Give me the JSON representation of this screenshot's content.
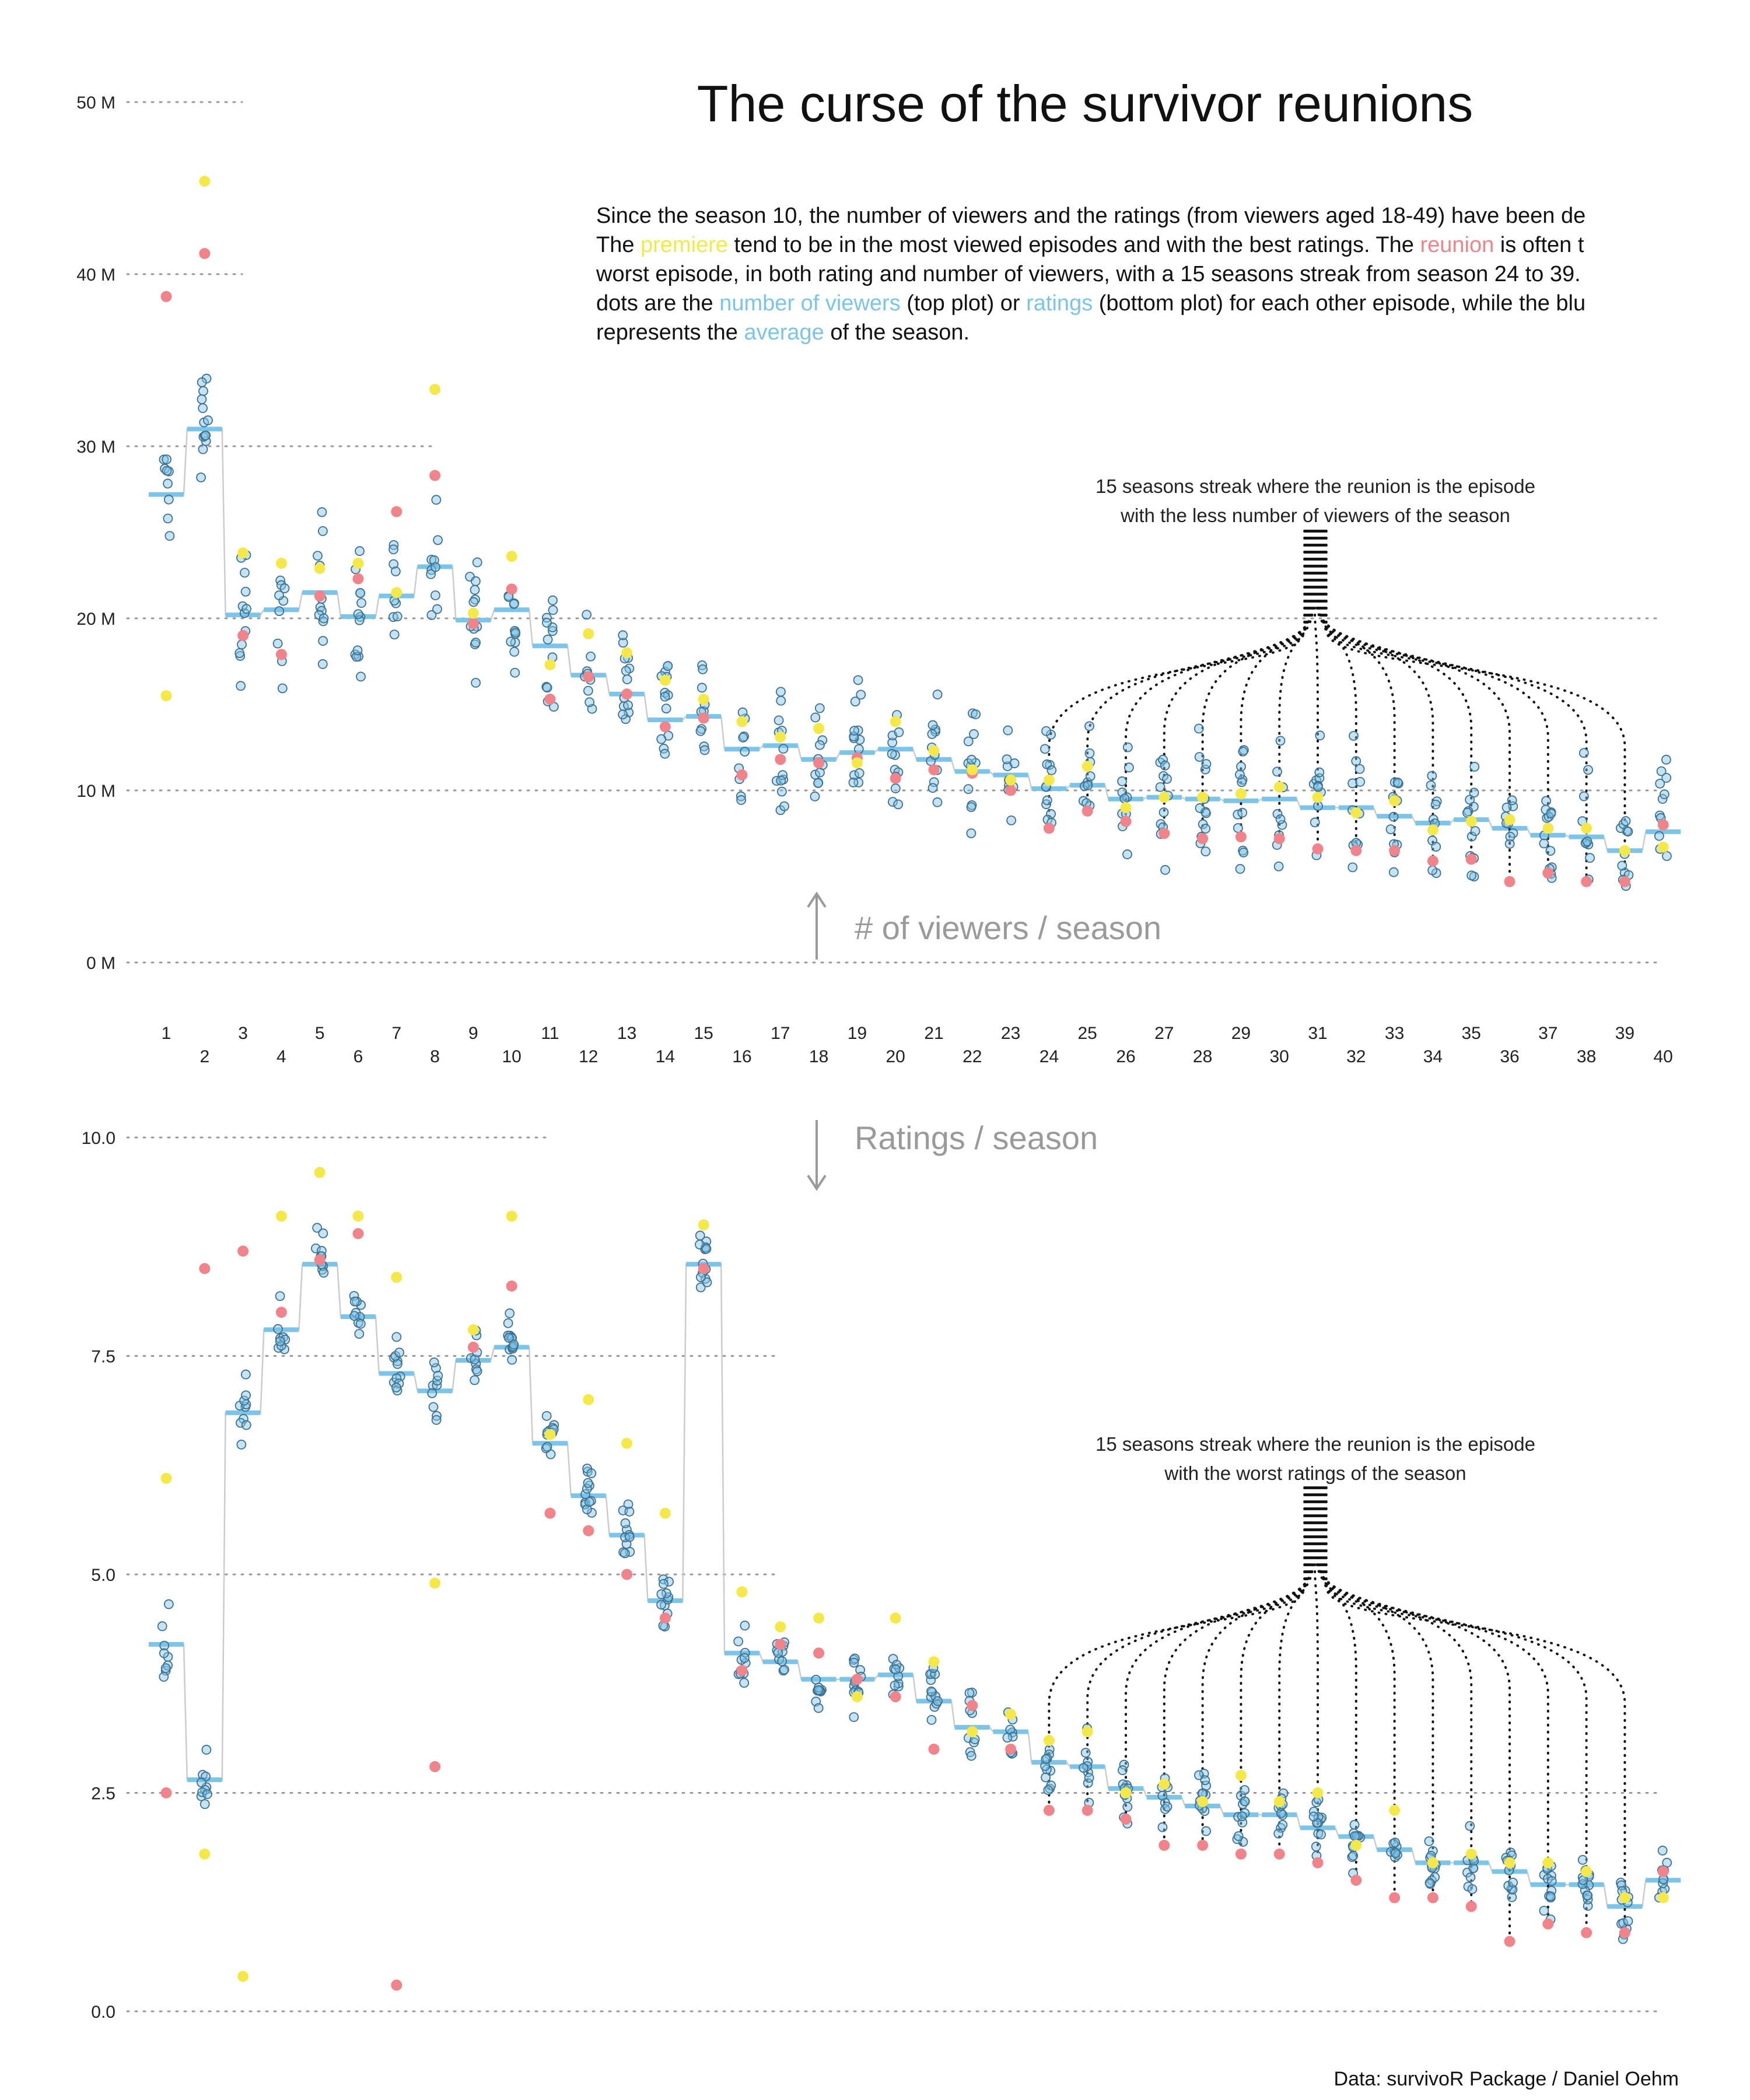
{
  "title": "The curse of the survivor reunions",
  "description": {
    "line1": "Since the season 10, the number of viewers and the ratings (from viewers aged 18-49) have been de",
    "line2_a": "The ",
    "line2_premiere": "premiere",
    "line2_b": " tend to be in the most viewed episodes and with the best ratings. The ",
    "line2_reunion": "reunion",
    "line2_c": " is often t",
    "line3": "worst episode, in both rating and number of viewers, with a 15 seasons streak from season 24 to 39.",
    "line4_a": "dots are the ",
    "line4_viewers": "number of viewers",
    "line4_b": " (top plot) or ",
    "line4_ratings": "ratings",
    "line4_c": " (bottom plot) for each other episode, while the blu",
    "line5_a": "represents the ",
    "line5_average": "average",
    "line5_b": " of the season."
  },
  "colors": {
    "premiere": "#F5E94A",
    "reunion": "#F0848A",
    "episode": "#7CC4E8",
    "average": "#7CC4E8",
    "connector": "#cccccc",
    "grid": "#999999",
    "axis_label": "#9a9a9a"
  },
  "labels": {
    "viewers_axis": "# of viewers / season",
    "ratings_axis": "Ratings / season",
    "viewers_annotation_1": "15 seasons streak where the reunion is the episode",
    "viewers_annotation_2": "with the less number of viewers of the season",
    "ratings_annotation_1": "15 seasons streak where the reunion is the episode",
    "ratings_annotation_2": "with the worst ratings of the season",
    "caption": "Data: survivoR Package / Daniel Oehm"
  },
  "chart_data": [
    {
      "type": "scatter",
      "name": "viewers",
      "y_ticks": [
        "0 M",
        "10 M",
        "20 M",
        "30 M",
        "40 M",
        "50 M"
      ],
      "y_tick_values": [
        0,
        10,
        20,
        30,
        40,
        50
      ],
      "ylim": [
        0,
        52
      ],
      "x_categories": [
        "1",
        "2",
        "3",
        "4",
        "5",
        "6",
        "7",
        "8",
        "9",
        "10",
        "11",
        "12",
        "13",
        "14",
        "15",
        "16",
        "17",
        "18",
        "19",
        "20",
        "21",
        "22",
        "23",
        "24",
        "25",
        "26",
        "27",
        "28",
        "29",
        "30",
        "31",
        "32",
        "33",
        "34",
        "35",
        "36",
        "37",
        "38",
        "39",
        "40"
      ],
      "average": [
        27.2,
        31.0,
        20.2,
        20.5,
        21.5,
        20.1,
        21.3,
        23.0,
        19.9,
        20.5,
        18.4,
        16.7,
        15.6,
        14.1,
        14.3,
        12.4,
        12.6,
        11.8,
        12.2,
        12.4,
        11.8,
        11.1,
        10.9,
        10.1,
        10.3,
        9.5,
        9.6,
        9.5,
        9.4,
        9.5,
        9.0,
        9.0,
        8.5,
        8.1,
        8.3,
        7.8,
        7.4,
        7.3,
        6.5,
        7.6
      ],
      "premiere": [
        15.5,
        45.4,
        23.8,
        23.2,
        22.9,
        23.2,
        21.5,
        33.3,
        20.3,
        23.6,
        17.3,
        19.1,
        18.0,
        16.4,
        15.3,
        14.0,
        13.1,
        13.6,
        11.6,
        14.0,
        12.3,
        11.2,
        10.6,
        10.6,
        11.4,
        9.0,
        9.6,
        9.6,
        9.8,
        10.2,
        9.6,
        8.7,
        9.4,
        7.7,
        8.2,
        8.3,
        7.8,
        7.8,
        6.5,
        6.7
      ],
      "reunion": [
        38.7,
        41.2,
        19.0,
        17.9,
        21.3,
        22.3,
        26.2,
        28.3,
        19.7,
        21.7,
        15.3,
        16.6,
        15.6,
        13.7,
        14.2,
        10.9,
        11.8,
        11.6,
        11.9,
        10.7,
        11.2,
        11.0,
        10.0,
        7.8,
        8.8,
        8.2,
        7.5,
        7.2,
        7.3,
        7.2,
        6.6,
        6.5,
        6.5,
        5.9,
        6.0,
        4.7,
        5.2,
        4.7,
        4.7,
        8.0
      ],
      "streak_seasons": [
        24,
        39
      ]
    },
    {
      "type": "scatter",
      "name": "ratings",
      "y_ticks": [
        "0.0",
        "2.5",
        "5.0",
        "7.5",
        "10.0"
      ],
      "y_tick_values": [
        0,
        2.5,
        5.0,
        7.5,
        10.0
      ],
      "ylim": [
        0,
        10
      ],
      "x_categories": [
        "1",
        "2",
        "3",
        "4",
        "5",
        "6",
        "7",
        "8",
        "9",
        "10",
        "11",
        "12",
        "13",
        "14",
        "15",
        "16",
        "17",
        "18",
        "19",
        "20",
        "21",
        "22",
        "23",
        "24",
        "25",
        "26",
        "27",
        "28",
        "29",
        "30",
        "31",
        "32",
        "33",
        "34",
        "35",
        "36",
        "37",
        "38",
        "39",
        "40"
      ],
      "average": [
        4.2,
        2.65,
        6.85,
        7.8,
        8.55,
        7.95,
        7.3,
        7.1,
        7.45,
        7.6,
        6.5,
        5.9,
        5.45,
        4.7,
        8.55,
        4.1,
        4.0,
        3.8,
        3.8,
        3.85,
        3.55,
        3.25,
        3.2,
        2.85,
        2.8,
        2.55,
        2.45,
        2.35,
        2.25,
        2.25,
        2.1,
        2.0,
        1.85,
        1.7,
        1.7,
        1.6,
        1.45,
        1.45,
        1.2,
        1.5
      ],
      "premiere": [
        6.1,
        1.8,
        0.4,
        9.1,
        9.6,
        9.1,
        8.4,
        4.9,
        7.8,
        9.1,
        6.6,
        7.0,
        6.5,
        5.7,
        9.0,
        4.8,
        4.4,
        4.5,
        3.6,
        4.5,
        4.0,
        3.2,
        3.4,
        3.1,
        3.2,
        2.5,
        2.6,
        2.4,
        2.7,
        2.4,
        2.5,
        1.9,
        2.3,
        1.7,
        1.8,
        1.7,
        1.7,
        1.6,
        1.3,
        1.3
      ],
      "reunion": [
        2.5,
        8.5,
        8.7,
        8.0,
        8.6,
        8.9,
        0.3,
        2.8,
        7.6,
        8.3,
        5.7,
        5.5,
        5.0,
        4.5,
        8.5,
        3.9,
        4.2,
        4.1,
        3.8,
        3.6,
        3.0,
        3.5,
        3.0,
        2.3,
        2.3,
        2.2,
        1.9,
        1.9,
        1.8,
        1.8,
        1.7,
        1.5,
        1.3,
        1.3,
        1.2,
        0.8,
        1.0,
        0.9,
        0.9,
        1.6
      ],
      "streak_seasons": [
        24,
        39
      ]
    }
  ]
}
